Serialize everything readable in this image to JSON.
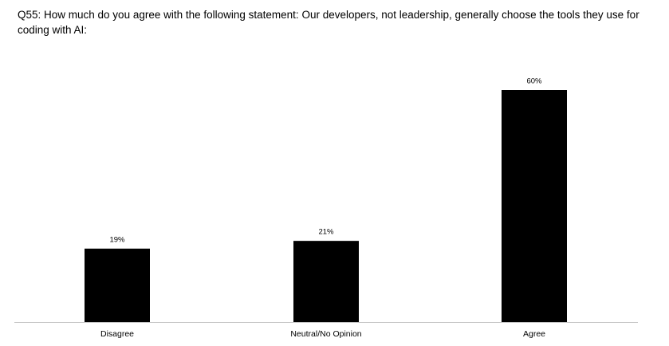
{
  "chart_data": {
    "type": "bar",
    "title": "Q55: How much do you agree with the following statement: Our developers, not leadership, generally choose the tools they use for coding with AI:",
    "categories": [
      "Disagree",
      "Neutral/No Opinion",
      "Agree"
    ],
    "values": [
      19,
      21,
      60
    ],
    "value_labels": [
      "19%",
      "21%",
      "60%"
    ],
    "color": "#000000"
  }
}
